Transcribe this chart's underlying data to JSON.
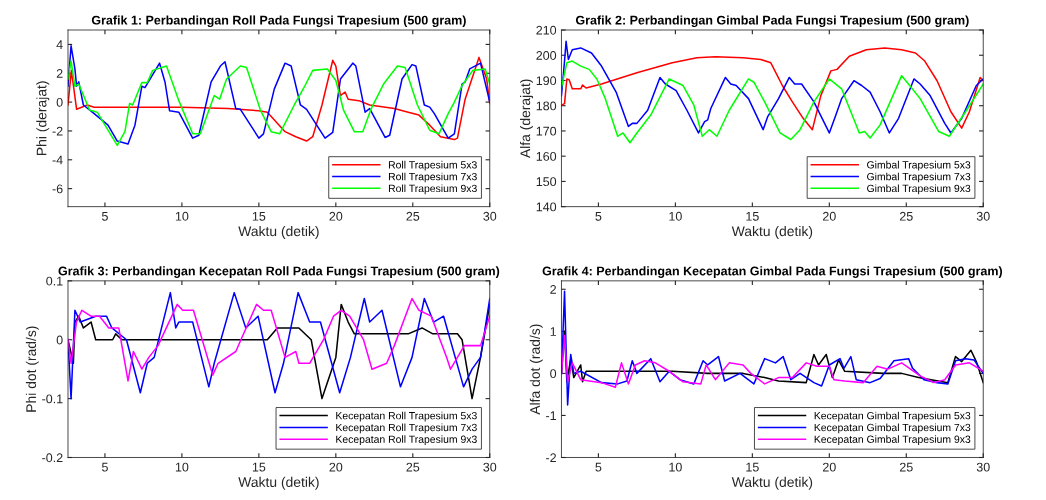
{
  "chart_data": [
    {
      "type": "line",
      "title": "Grafik 1: Perbandingan Roll Pada Fungsi Trapesium (500 gram)",
      "xlabel": "Waktu (detik)",
      "ylabel": "Phi (derajat)",
      "xlim": [
        2.6,
        30
      ],
      "xticks": [
        5,
        10,
        15,
        20,
        25,
        30
      ],
      "ylim": [
        -7.25,
        5
      ],
      "yticks": [
        -6,
        -4,
        -2,
        0,
        2,
        4
      ],
      "legend": "bottom right",
      "grid": false,
      "series": [
        {
          "name": "Roll Trapesium 5x3",
          "color": "#ff0000",
          "x": [
            2.6,
            2.82,
            3.16,
            3.85,
            4.3,
            10,
            13,
            15,
            15.55,
            16.7,
            17.4,
            18.1,
            18.5,
            19.1,
            19.8,
            20.0,
            20.3,
            20.6,
            20.8,
            21.5,
            22.2,
            23.8,
            24.7,
            25.4,
            26.1,
            26.8,
            27.7,
            27.9,
            28.4,
            29.3,
            29.8,
            30
          ],
          "values": [
            -0.2,
            2.2,
            -0.5,
            -0.2,
            -0.35,
            -0.35,
            -0.45,
            -0.6,
            -0.7,
            -2.05,
            -2.4,
            -2.7,
            -2.4,
            -0.2,
            2.9,
            2.5,
            0.45,
            0.7,
            0.2,
            0.1,
            -0.2,
            -0.45,
            -0.7,
            -0.9,
            -1.6,
            -2.4,
            -2.6,
            -2.5,
            0.2,
            3.1,
            1.6,
            -0.1
          ]
        },
        {
          "name": "Roll Trapesium 7x3",
          "color": "#0000ff",
          "x": [
            2.6,
            2.8,
            3.05,
            3.16,
            3.3,
            3.6,
            4.3,
            5.2,
            5.8,
            6.5,
            6.95,
            7.4,
            7.6,
            8.55,
            8.9,
            9.2,
            9.8,
            10.7,
            11.1,
            11.9,
            12.5,
            12.8,
            13.5,
            13.8,
            15.0,
            15.3,
            16.0,
            16.7,
            17.1,
            17.7,
            18.1,
            19.3,
            19.8,
            20.3,
            21.1,
            21.3,
            21.9,
            22.2,
            23.2,
            23.5,
            24.3,
            24.95,
            25.2,
            25.75,
            26.1,
            26.4,
            27.3,
            27.7,
            28.2,
            28.4,
            28.7,
            29.4,
            30
          ],
          "values": [
            1.1,
            3.9,
            2.3,
            1.1,
            1.4,
            -0.2,
            -0.8,
            -1.6,
            -2.7,
            -2.9,
            -1.6,
            1.1,
            1.0,
            2.7,
            1.4,
            -0.6,
            -0.7,
            -2.5,
            -2.3,
            1.4,
            2.5,
            2.8,
            -0.45,
            -0.5,
            -2.5,
            -2.2,
            0.9,
            2.7,
            2.5,
            -0.2,
            -0.5,
            -2.5,
            -2.1,
            1.6,
            2.7,
            2.5,
            -0.7,
            -0.45,
            -2.45,
            -2.3,
            1.6,
            2.6,
            2.5,
            -0.2,
            -0.35,
            -0.8,
            -2.5,
            -2.2,
            1.25,
            1.4,
            2.3,
            2.7,
            0
          ]
        },
        {
          "name": "Roll Trapesium 9x3",
          "color": "#00ff00",
          "x": [
            2.6,
            2.8,
            3.05,
            3.3,
            4.0,
            4.5,
            5.2,
            5.8,
            6.3,
            6.6,
            6.8,
            7.4,
            7.75,
            8.1,
            9.0,
            9.8,
            10.7,
            11.2,
            12.1,
            12.45,
            12.9,
            13.8,
            14.2,
            15.1,
            15.8,
            16.35,
            17.3,
            18.0,
            18.5,
            19.45,
            20.0,
            20.5,
            21.2,
            21.75,
            22.3,
            23.1,
            24.0,
            24.5,
            25.3,
            26.1,
            26.7,
            27.3,
            27.7,
            28.2,
            28.9,
            29.7,
            30
          ],
          "values": [
            1.6,
            2.85,
            1.1,
            1.25,
            -0.55,
            -0.7,
            -1.95,
            -3.0,
            -2.05,
            -0.1,
            -0.2,
            1.35,
            1.35,
            2.2,
            2.5,
            0.1,
            -2.2,
            -2.2,
            0.45,
            0.2,
            1.6,
            2.5,
            2.4,
            -0.55,
            -2.05,
            -2.2,
            -0.2,
            1.15,
            2.2,
            2.3,
            1.5,
            -0.55,
            -2.05,
            -2.05,
            -0.45,
            1.25,
            2.5,
            2.4,
            -0.2,
            -1.95,
            -2.2,
            -0.8,
            0,
            1.15,
            2.2,
            2.3,
            1.25
          ]
        }
      ]
    },
    {
      "type": "line",
      "title": "Grafik 2: Perbandingan Gimbal Pada Fungsi Trapesium (500 gram)",
      "xlabel": "Waktu (detik)",
      "ylabel": "Alfa (derajat)",
      "xlim": [
        2.6,
        30
      ],
      "xticks": [
        5,
        10,
        15,
        20,
        25,
        30
      ],
      "ylim": [
        140,
        210
      ],
      "yticks": [
        140,
        150,
        160,
        170,
        180,
        190,
        200,
        210
      ],
      "legend": "bottom right",
      "grid": false,
      "series": [
        {
          "name": "Gimbal Trapesium 5x3",
          "color": "#ff0000",
          "x": [
            2.6,
            2.8,
            2.95,
            3.1,
            3.3,
            3.85,
            3.97,
            4.2,
            5.2,
            7.5,
            9.8,
            11.4,
            12.6,
            14.4,
            15.55,
            16.2,
            16.95,
            17.6,
            18.3,
            18.9,
            19.45,
            20.1,
            20.5,
            21.3,
            22.4,
            23.6,
            24.7,
            25.6,
            26.2,
            27.0,
            27.9,
            28.6,
            29.1,
            29.8,
            30
          ],
          "values": [
            180.2,
            180.8,
            190.6,
            190.3,
            186.7,
            186.7,
            188.2,
            187,
            188.6,
            193.1,
            197,
            199,
            199.4,
            199,
            198.3,
            197,
            188,
            181.5,
            175,
            170.5,
            184,
            193.8,
            194.4,
            199.6,
            202.2,
            202.9,
            202.2,
            200.9,
            197.7,
            189.9,
            177.6,
            171.1,
            177.6,
            191.2,
            189.9
          ]
        },
        {
          "name": "Gimbal Trapesium 7x3",
          "color": "#0000ff",
          "x": [
            2.6,
            2.8,
            2.9,
            3.05,
            3.3,
            3.85,
            4.55,
            5.2,
            6.15,
            6.95,
            7.2,
            7.5,
            8.2,
            9.0,
            9.35,
            10.05,
            10.75,
            11.5,
            11.9,
            12.1,
            12.3,
            13.25,
            13.6,
            13.95,
            14.75,
            15.7,
            16.0,
            16.7,
            17.4,
            17.75,
            18.2,
            19.0,
            20.0,
            20.35,
            20.8,
            21.6,
            22.1,
            22.65,
            23.3,
            23.9,
            24.5,
            25.5,
            25.9,
            26.55,
            27.5,
            27.9,
            28.6,
            29.55,
            30
          ],
          "values": [
            184,
            197.7,
            205.5,
            198.3,
            202.2,
            202.9,
            200.9,
            195.7,
            185.4,
            171.8,
            173,
            173,
            178.2,
            191.2,
            188.6,
            186,
            178.2,
            169.2,
            173.7,
            174.4,
            178.9,
            191.2,
            188.6,
            188,
            182.8,
            170.5,
            175.7,
            182.8,
            191.2,
            188.6,
            188.6,
            181.5,
            169.2,
            175,
            182.8,
            189.9,
            188,
            185.4,
            177.6,
            169.2,
            175,
            190.6,
            188.6,
            184,
            173,
            169.2,
            175,
            188,
            190.6
          ]
        },
        {
          "name": "Gimbal Trapesium 9x3",
          "color": "#00ff00",
          "x": [
            2.6,
            2.95,
            3.3,
            3.85,
            4.4,
            4.9,
            5.45,
            6.25,
            6.6,
            7.05,
            7.5,
            8.4,
            9.6,
            10.05,
            10.5,
            11.2,
            11.75,
            12.2,
            12.7,
            13.5,
            14.75,
            15.1,
            15.8,
            16.8,
            17.5,
            18.1,
            19.0,
            20.0,
            20.8,
            21.95,
            22.3,
            22.65,
            23.3,
            24.7,
            25.05,
            25.9,
            27.1,
            27.8,
            28.85,
            30
          ],
          "values": [
            187.3,
            197,
            197.7,
            195.7,
            194.4,
            190.6,
            182.8,
            167.9,
            169.2,
            165.3,
            169.2,
            176.3,
            190.6,
            189.3,
            188,
            180.2,
            167.9,
            170.5,
            167.9,
            178.2,
            190.6,
            189.3,
            181.5,
            169.2,
            166.6,
            170.5,
            181.5,
            190.6,
            186.7,
            169.2,
            169.8,
            167.2,
            172.4,
            191.9,
            189.3,
            182.8,
            169.8,
            167.9,
            177.6,
            188.6
          ]
        }
      ]
    },
    {
      "type": "line",
      "title": "Grafik 3: Perbandingan Kecepatan Roll Pada Fungsi Trapesium (500 gram)",
      "xlabel": "Waktu (detik)",
      "ylabel": "Phi dot (rad/s)",
      "xlim": [
        2.6,
        30
      ],
      "xticks": [
        5,
        10,
        15,
        20,
        25,
        30
      ],
      "ylim": [
        -0.2,
        0.1
      ],
      "yticks": [
        -0.2,
        -0.1,
        0,
        0.1
      ],
      "legend": "bottom right",
      "grid": false,
      "series": [
        {
          "name": "Kecepatan Roll Trapesium 5x3",
          "color": "#000000",
          "x": [
            2.6,
            2.95,
            3.05,
            3.3,
            3.6,
            4.1,
            4.4,
            5.5,
            5.7,
            6.1,
            15.55,
            16.2,
            17.6,
            18.4,
            19.1,
            20.0,
            20.35,
            20.8,
            21.2,
            24.7,
            25.6,
            26.3,
            27.9,
            28.2,
            28.85,
            29.4,
            30
          ],
          "values": [
            0,
            -0.04,
            0.03,
            0.04,
            0.02,
            0.03,
            0,
            0,
            0.01,
            0,
            0,
            0.02,
            0.02,
            0,
            -0.1,
            -0.03,
            0.06,
            0.03,
            0.01,
            0.01,
            0.02,
            0.01,
            0.01,
            0,
            -0.1,
            -0.03,
            0.06
          ]
        },
        {
          "name": "Kecepatan Roll Trapesium 7x3",
          "color": "#0000ff",
          "x": [
            2.6,
            2.8,
            3.05,
            3.4,
            4.4,
            5.1,
            5.45,
            6.4,
            7.3,
            7.75,
            8.2,
            9.25,
            9.6,
            9.8,
            10.7,
            11.75,
            12.1,
            13.4,
            14.15,
            14.95,
            16.05,
            16.6,
            17.55,
            18.3,
            19.0,
            20.25,
            20.95,
            21.85,
            22.2,
            23.0,
            24.2,
            24.95,
            25.75,
            26.35,
            27.0,
            28.3,
            28.85,
            29.4,
            30
          ],
          "values": [
            0,
            -0.1,
            0.05,
            0.03,
            0.04,
            0.04,
            0.02,
            0,
            -0.09,
            -0.04,
            -0.03,
            0.08,
            0.02,
            0.03,
            0.03,
            -0.08,
            -0.04,
            0.08,
            0.02,
            0.04,
            -0.09,
            -0.04,
            0.08,
            0.03,
            0.03,
            -0.09,
            -0.03,
            0.07,
            0.03,
            0.05,
            -0.08,
            -0.03,
            0.07,
            0.03,
            0.04,
            -0.08,
            -0.05,
            -0.03,
            0.07
          ]
        },
        {
          "name": "Kecepatan Roll Trapesium 9x3",
          "color": "#ff00ff",
          "x": [
            2.6,
            2.8,
            3.15,
            3.5,
            4.1,
            4.65,
            5.25,
            5.9,
            6.5,
            6.85,
            7.4,
            7.85,
            8.45,
            9.7,
            10.05,
            10.75,
            12.0,
            12.35,
            13.5,
            14.85,
            15.3,
            15.8,
            16.7,
            17.4,
            17.6,
            18.3,
            19.2,
            19.85,
            20.35,
            20.9,
            21.8,
            22.35,
            23.3,
            23.8,
            24.95,
            25.4,
            26.2,
            27.2,
            27.45,
            28.35,
            29.4,
            30
          ],
          "values": [
            0,
            -0.04,
            0.03,
            0.05,
            0.04,
            0.04,
            0.02,
            0.02,
            -0.07,
            -0.02,
            -0.05,
            -0.03,
            -0.01,
            0.06,
            0.05,
            0.05,
            -0.06,
            -0.04,
            -0.02,
            0.06,
            0.05,
            0.05,
            -0.03,
            -0.02,
            -0.04,
            -0.04,
            0,
            0.04,
            0.05,
            0.04,
            0,
            -0.05,
            -0.04,
            -0.01,
            0.07,
            0.05,
            0.04,
            -0.03,
            -0.05,
            -0.01,
            -0.01,
            0.04
          ]
        }
      ]
    },
    {
      "type": "line",
      "title": "Grafik 4: Perbandingan Kecepatan Gimbal Pada Fungsi Trapesium (500 gram)",
      "xlabel": "Waktu (detik)",
      "ylabel": "Alfa dot (rad/s)",
      "xlim": [
        2.6,
        30
      ],
      "xticks": [
        5,
        10,
        15,
        20,
        25,
        30
      ],
      "ylim": [
        -2,
        2.2
      ],
      "yticks": [
        -2,
        -1,
        0,
        1,
        2
      ],
      "legend": "bottom right",
      "grid": false,
      "series": [
        {
          "name": "Kecepatan Gimbal Trapesium 5x3",
          "color": "#000000",
          "x": [
            2.6,
            2.8,
            2.95,
            3.2,
            3.4,
            3.85,
            3.97,
            4.2,
            5.2,
            7.5,
            9.8,
            12.1,
            14.4,
            15.8,
            16.7,
            18.5,
            19.0,
            19.3,
            19.8,
            20.2,
            20.6,
            21.0,
            23.5,
            24.7,
            25.8,
            27.7,
            28.2,
            28.6,
            29.2,
            29.55,
            30
          ],
          "values": [
            0,
            1.0,
            -0.2,
            0.35,
            -0.1,
            0.2,
            -0.2,
            0.05,
            0.05,
            0.05,
            0.05,
            0,
            0,
            -0.1,
            -0.18,
            -0.22,
            0.45,
            0.2,
            0.45,
            -0.1,
            0.32,
            0.05,
            0,
            0,
            -0.1,
            -0.22,
            0.4,
            0.28,
            0.55,
            0.28,
            -0.22
          ]
        },
        {
          "name": "Kecepatan Gimbal Trapesium 7x3",
          "color": "#0000ff",
          "x": [
            2.6,
            2.8,
            3.0,
            3.2,
            3.4,
            3.85,
            5.2,
            6.25,
            6.85,
            7.2,
            7.5,
            8.4,
            9.0,
            9.6,
            10.3,
            11.2,
            11.8,
            12.1,
            12.8,
            13.2,
            14.2,
            15.1,
            15.8,
            16.5,
            17.0,
            17.5,
            18.1,
            19.0,
            19.5,
            20.0,
            20.7,
            20.95,
            21.4,
            21.75,
            22.65,
            23.3,
            24.2,
            25.15,
            25.4,
            26.15,
            27.0,
            27.7,
            28.2,
            28.85,
            29.4,
            30
          ],
          "values": [
            0,
            1.95,
            -0.75,
            0.45,
            0,
            0.05,
            -0.22,
            -0.25,
            -0.18,
            0.3,
            0,
            0.35,
            -0.2,
            0.05,
            -0.15,
            -0.25,
            0.3,
            0.2,
            0.4,
            -0.18,
            0,
            -0.25,
            0.35,
            0.25,
            0.4,
            -0.15,
            0,
            -0.22,
            -0.3,
            0.2,
            0.35,
            0.12,
            0.4,
            -0.15,
            -0.22,
            -0.12,
            0.3,
            0.35,
            0.13,
            -0.15,
            -0.22,
            -0.25,
            0.3,
            0.35,
            0.32,
            0
          ]
        },
        {
          "name": "Kecepatan Gimbal Trapesium 9x3",
          "color": "#ff00ff",
          "x": [
            2.6,
            2.8,
            3.0,
            3.3,
            3.85,
            5.2,
            6.1,
            6.5,
            6.95,
            7.4,
            8.0,
            8.7,
            9.6,
            10.5,
            11.65,
            12.0,
            12.6,
            13.5,
            14.4,
            14.9,
            15.8,
            16.7,
            17.6,
            18.5,
            19.2,
            20.0,
            20.3,
            21.0,
            22.2,
            23.1,
            23.8,
            24.7,
            25.9,
            26.8,
            27.5,
            28.2,
            29.1,
            30
          ],
          "values": [
            0,
            0.9,
            -0.2,
            0.25,
            -0.15,
            -0.22,
            -0.33,
            0.25,
            -0.25,
            0.2,
            0.3,
            0.25,
            0.05,
            -0.2,
            -0.25,
            0.2,
            -0.15,
            0.25,
            0.2,
            0,
            -0.25,
            -0.1,
            -0.1,
            0.25,
            0.17,
            0.17,
            -0.15,
            -0.18,
            -0.22,
            0.17,
            0.1,
            0.25,
            -0.06,
            -0.22,
            -0.15,
            0.2,
            0.25,
            0.05
          ]
        }
      ]
    }
  ]
}
